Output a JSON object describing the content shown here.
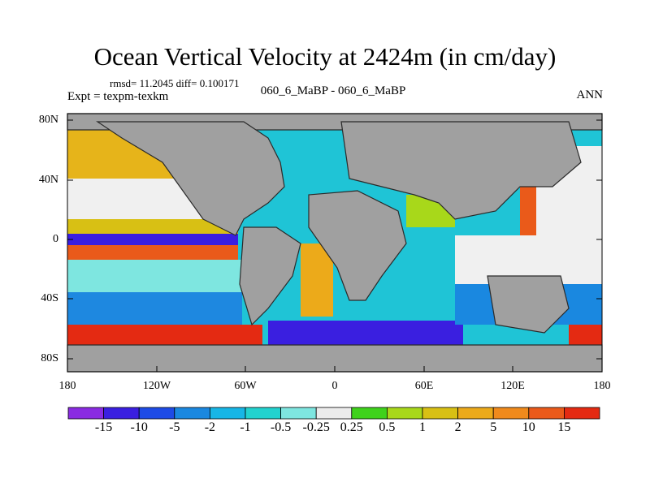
{
  "title": "Ocean Vertical Velocity at 2424m (in cm/day)",
  "stats": "rmsd= 11.2045 diff= 0.100171",
  "expt": "Expt = texpm-texkm",
  "subtitle": "060_6_MaBP - 060_6_MaBP",
  "season": "ANN",
  "lat_labels": [
    "80N",
    "40N",
    "0",
    "40S",
    "80S"
  ],
  "lon_labels": [
    "180",
    "120W",
    "60W",
    "0",
    "60E",
    "120E",
    "180"
  ],
  "colorbar": {
    "labels": [
      "-15",
      "-10",
      "-5",
      "-2",
      "-1",
      "-0.5",
      "-0.25",
      "0.25",
      "0.5",
      "1",
      "2",
      "5",
      "10",
      "15"
    ],
    "colors": [
      "#8a2be2",
      "#3a1fe0",
      "#1e4be6",
      "#1a88e0",
      "#17b6e6",
      "#22d2cf",
      "#7ee6e0",
      "#ececec",
      "#3fd21c",
      "#a8d81a",
      "#d8c014",
      "#ecaa1a",
      "#f08a1c",
      "#ea5a1a",
      "#e42a12"
    ]
  }
}
